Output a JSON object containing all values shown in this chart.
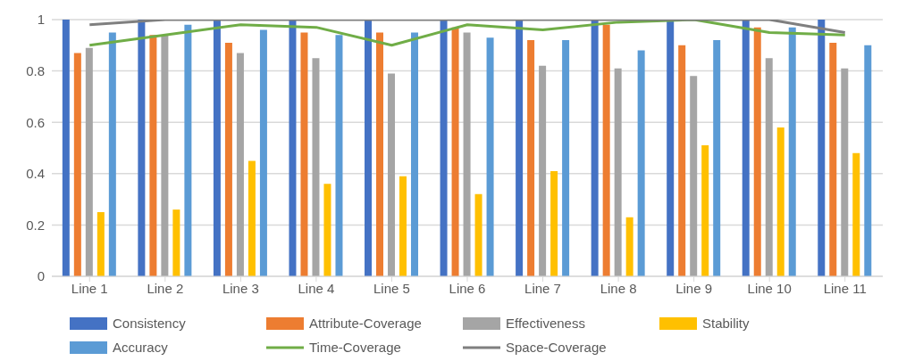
{
  "chart_data": {
    "type": "bar",
    "categories": [
      "Line 1",
      "Line 2",
      "Line 3",
      "Line 4",
      "Line 5",
      "Line 6",
      "Line 7",
      "Line 8",
      "Line 9",
      "Line 10",
      "Line 11"
    ],
    "series": [
      {
        "name": "Consistency",
        "color": "#4472c4",
        "values": [
          1,
          1,
          1,
          1,
          1,
          1,
          1,
          1,
          1,
          1,
          1
        ]
      },
      {
        "name": "Attribute-Coverage",
        "color": "#ed7d31",
        "values": [
          0.87,
          0.94,
          0.91,
          0.95,
          0.95,
          0.97,
          0.92,
          0.98,
          0.9,
          0.97,
          0.91
        ]
      },
      {
        "name": "Effectiveness",
        "color": "#a5a5a5",
        "values": [
          0.89,
          0.94,
          0.87,
          0.85,
          0.79,
          0.95,
          0.82,
          0.81,
          0.78,
          0.85,
          0.81
        ]
      },
      {
        "name": "Stability",
        "color": "#ffc000",
        "values": [
          0.25,
          0.26,
          0.45,
          0.36,
          0.39,
          0.32,
          0.41,
          0.23,
          0.51,
          0.58,
          0.48
        ]
      },
      {
        "name": "Accuracy",
        "color": "#5b9bd5",
        "values": [
          0.95,
          0.98,
          0.96,
          0.94,
          0.95,
          0.93,
          0.92,
          0.88,
          0.92,
          0.97,
          0.9
        ]
      },
      {
        "name": "Time-Coverage",
        "type": "line",
        "color": "#70ad47",
        "values": [
          0.9,
          0.94,
          0.98,
          0.97,
          0.9,
          0.98,
          0.96,
          0.99,
          1,
          0.95,
          0.94
        ]
      },
      {
        "name": "Space-Coverage",
        "type": "line",
        "color": "#7f7f7f",
        "values": [
          0.98,
          1,
          1,
          1,
          1,
          1,
          1,
          1,
          1,
          1,
          0.95
        ]
      }
    ],
    "ylim": [
      0,
      1
    ],
    "yticks": [
      0,
      0.2,
      0.4,
      0.6,
      0.8,
      1
    ],
    "grid": "y",
    "legend": "bottom",
    "marker": "none"
  }
}
